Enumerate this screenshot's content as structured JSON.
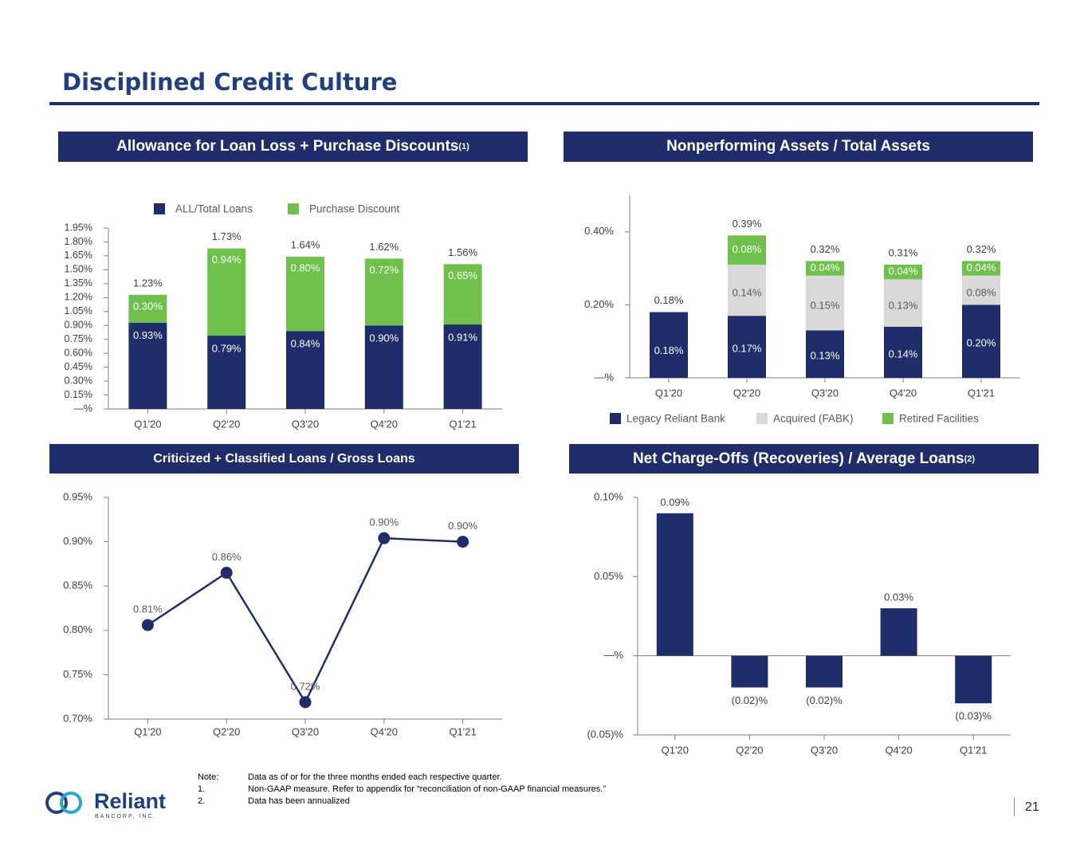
{
  "page": {
    "title": "Disciplined Credit Culture",
    "page_number": "21",
    "logo_name": "Reliant",
    "logo_sub": "BANCORP, INC."
  },
  "colors": {
    "navy": "#1f2d6b",
    "green": "#70c04c",
    "gray": "#d9d9d9",
    "axis": "#7f7f7f"
  },
  "headers": {
    "allowance": "Allowance for Loan Loss + Purchase Discounts",
    "allowance_sup": "(1)",
    "npa": "Nonperforming Assets / Total Assets",
    "criticized": "Criticized + Classified Loans / Gross Loans",
    "nco": "Net Charge-Offs (Recoveries) / Average Loans",
    "nco_sup": "(2)"
  },
  "notes": [
    {
      "key": "Note:",
      "text": "Data as of or for the three months ended each respective quarter."
    },
    {
      "key": "1.",
      "text": "Non-GAAP measure. Refer to appendix for “reconciliation of non-GAAP financial measures.”"
    },
    {
      "key": "2.",
      "text": "Data has been annualized"
    }
  ],
  "chart_data": [
    {
      "id": "allowance",
      "type": "bar",
      "stacked": true,
      "categories": [
        "Q1'20",
        "Q2'20",
        "Q3'20",
        "Q4'20",
        "Q1'21"
      ],
      "series": [
        {
          "name": "ALL/Total Loans",
          "color": "#1f2d6b",
          "values": [
            0.93,
            0.79,
            0.84,
            0.9,
            0.91
          ],
          "labels": [
            "0.93%",
            "0.79%",
            "0.84%",
            "0.90%",
            "0.91%"
          ]
        },
        {
          "name": "Purchase Discount",
          "color": "#70c04c",
          "values": [
            0.3,
            0.94,
            0.8,
            0.72,
            0.65
          ],
          "labels": [
            "0.30%",
            "0.94%",
            "0.80%",
            "0.72%",
            "0.65%"
          ]
        }
      ],
      "totals": [
        "1.23%",
        "1.73%",
        "1.64%",
        "1.62%",
        "1.56%"
      ],
      "ylim": [
        0,
        1.95
      ],
      "yticks": [
        "—%",
        "0.15%",
        "0.30%",
        "0.45%",
        "0.60%",
        "0.75%",
        "0.90%",
        "1.05%",
        "1.20%",
        "1.35%",
        "1.50%",
        "1.65%",
        "1.80%",
        "1.95%"
      ],
      "legend_position": "top"
    },
    {
      "id": "npa",
      "type": "bar",
      "stacked": true,
      "categories": [
        "Q1'20",
        "Q2'20",
        "Q3'20",
        "Q4'20",
        "Q1'21"
      ],
      "series": [
        {
          "name": "Legacy Reliant Bank",
          "color": "#1f2d6b",
          "values": [
            0.18,
            0.17,
            0.13,
            0.14,
            0.2
          ],
          "labels": [
            "0.18%",
            "0.17%",
            "0.13%",
            "0.14%",
            "0.20%"
          ]
        },
        {
          "name": "Acquired (FABK)",
          "color": "#d9d9d9",
          "values": [
            0,
            0.14,
            0.15,
            0.13,
            0.08
          ],
          "labels": [
            "",
            "0.14%",
            "0.15%",
            "0.13%",
            "0.08%"
          ]
        },
        {
          "name": "Retired Facilities",
          "color": "#70c04c",
          "values": [
            0,
            0.08,
            0.04,
            0.04,
            0.04
          ],
          "labels": [
            "",
            "0.08%",
            "0.04%",
            "0.04%",
            "0.04%"
          ]
        }
      ],
      "totals": [
        "0.18%",
        "0.39%",
        "0.32%",
        "0.31%",
        "0.32%"
      ],
      "ylim": [
        0,
        0.5
      ],
      "yticks": [
        {
          "v": 0,
          "label": "—%"
        },
        {
          "v": 0.2,
          "label": "0.20%"
        },
        {
          "v": 0.4,
          "label": "0.40%"
        }
      ],
      "legend_position": "bottom"
    },
    {
      "id": "criticized",
      "type": "line",
      "categories": [
        "Q1'20",
        "Q2'20",
        "Q3'20",
        "Q4'20",
        "Q1'21"
      ],
      "values": [
        0.806,
        0.865,
        0.719,
        0.904,
        0.9
      ],
      "labels": [
        "0.81%",
        "0.86%",
        "0.72%",
        "0.90%",
        "0.90%"
      ],
      "ylim": [
        0.7,
        0.95
      ],
      "yticks": [
        {
          "v": 0.7,
          "label": "0.70%"
        },
        {
          "v": 0.75,
          "label": "0.75%"
        },
        {
          "v": 0.8,
          "label": "0.80%"
        },
        {
          "v": 0.85,
          "label": "0.85%"
        },
        {
          "v": 0.9,
          "label": "0.90%"
        },
        {
          "v": 0.95,
          "label": "0.95%"
        }
      ]
    },
    {
      "id": "nco",
      "type": "bar",
      "categories": [
        "Q1'20",
        "Q2'20",
        "Q3'20",
        "Q4'20",
        "Q1'21"
      ],
      "values": [
        0.09,
        -0.02,
        -0.02,
        0.03,
        -0.03
      ],
      "labels": [
        "0.09%",
        "(0.02)%",
        "(0.02)%",
        "0.03%",
        "(0.03)%"
      ],
      "ylim": [
        -0.05,
        0.1
      ],
      "yticks": [
        {
          "v": -0.05,
          "label": "(0.05)%"
        },
        {
          "v": 0,
          "label": "—%"
        },
        {
          "v": 0.05,
          "label": "0.05%"
        },
        {
          "v": 0.1,
          "label": "0.10%"
        }
      ]
    }
  ]
}
